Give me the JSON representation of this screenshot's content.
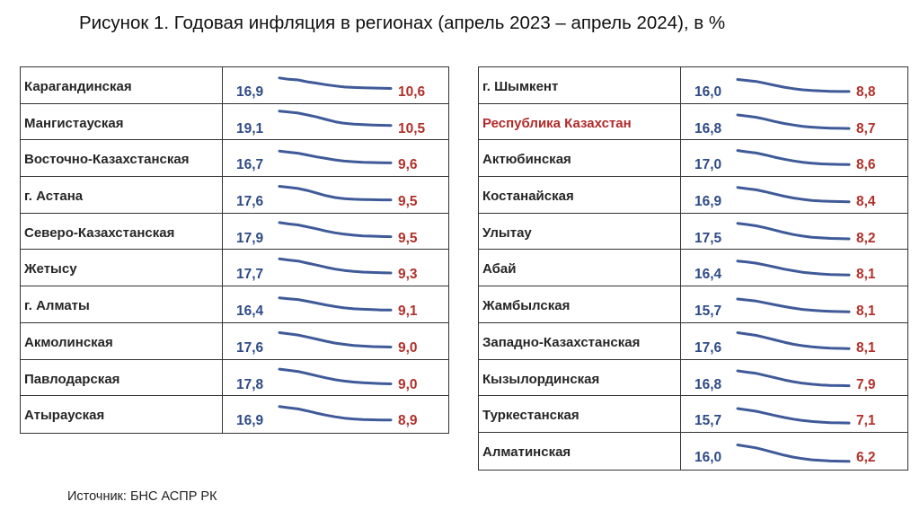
{
  "title": "Рисунок 1. Годовая инфляция в регионах (апрель 2023 – апрель 2024), в %",
  "source": "Источник: БНС АСПР РК",
  "colors": {
    "line": "#3f5a98",
    "start_value": "#2e4b86",
    "end_value": "#b0302a",
    "highlight": "#b22a2a"
  },
  "chart_data": {
    "type": "line",
    "subtype": "sparkline-table",
    "x": [
      "апрель 2023",
      "апрель 2024"
    ],
    "panels": [
      {
        "regions": [
          {
            "name": "Карагандинская",
            "start": "16,9",
            "end": "10,6",
            "series": [
              16.9,
              16.1,
              15.7,
              14.6,
              13.8,
              12.9,
              12.1,
              11.5,
              11.2,
              11.0,
              10.9,
              10.8,
              10.6
            ]
          },
          {
            "name": "Мангистауская",
            "start": "19,1",
            "end": "10,5",
            "series": [
              19.1,
              18.5,
              17.9,
              16.8,
              15.6,
              14.1,
              12.7,
              11.8,
              11.3,
              11.0,
              10.8,
              10.6,
              10.5
            ]
          },
          {
            "name": "Восточно-Казахстанская",
            "start": "16,7",
            "end": "9,6",
            "series": [
              16.7,
              16.0,
              15.4,
              14.3,
              13.2,
              12.3,
              11.4,
              10.7,
              10.3,
              10.0,
              9.8,
              9.7,
              9.6
            ]
          },
          {
            "name": "г. Астана",
            "start": "17,6",
            "end": "9,5",
            "series": [
              17.6,
              17.0,
              16.3,
              15.1,
              13.6,
              12.0,
              10.9,
              10.2,
              9.9,
              9.7,
              9.6,
              9.5,
              9.5
            ]
          },
          {
            "name": "Северо-Казахстанская",
            "start": "17,9",
            "end": "9,5",
            "series": [
              17.9,
              17.1,
              16.5,
              15.4,
              14.2,
              12.9,
              11.8,
              11.0,
              10.4,
              10.0,
              9.8,
              9.6,
              9.5
            ]
          },
          {
            "name": "Жетысу",
            "start": "17,7",
            "end": "9,3",
            "series": [
              17.7,
              17.0,
              16.4,
              15.2,
              14.0,
              12.7,
              11.6,
              10.8,
              10.2,
              9.8,
              9.6,
              9.4,
              9.3
            ]
          },
          {
            "name": "г. Алматы",
            "start": "16,4",
            "end": "9,1",
            "series": [
              16.4,
              15.9,
              15.4,
              14.4,
              13.3,
              12.2,
              11.2,
              10.4,
              9.9,
              9.6,
              9.4,
              9.2,
              9.1
            ]
          },
          {
            "name": "Акмолинская",
            "start": "17,6",
            "end": "9,0",
            "series": [
              17.6,
              16.9,
              16.2,
              15.0,
              13.8,
              12.5,
              11.4,
              10.6,
              10.0,
              9.6,
              9.3,
              9.1,
              9.0
            ]
          },
          {
            "name": "Павлодарская",
            "start": "17,8",
            "end": "9,0",
            "series": [
              17.8,
              17.1,
              16.4,
              15.2,
              13.9,
              12.6,
              11.5,
              10.7,
              10.1,
              9.7,
              9.4,
              9.2,
              9.0
            ]
          },
          {
            "name": "Атырауская",
            "start": "16,9",
            "end": "8,9",
            "series": [
              16.9,
              16.2,
              15.5,
              14.3,
              13.0,
              11.8,
              10.8,
              10.0,
              9.5,
              9.2,
              9.0,
              8.9,
              8.9
            ]
          }
        ]
      },
      {
        "regions": [
          {
            "name": "г. Шымкент",
            "start": "16,0",
            "end": "8,8",
            "series": [
              16.0,
              15.4,
              14.8,
              13.7,
              12.5,
              11.4,
              10.5,
              9.8,
              9.4,
              9.1,
              8.9,
              8.8,
              8.8
            ]
          },
          {
            "name": "Республика Казахстан",
            "start": "16,8",
            "end": "8,7",
            "highlight": true,
            "series": [
              16.8,
              16.1,
              15.4,
              14.2,
              12.9,
              11.7,
              10.8,
              10.0,
              9.5,
              9.1,
              8.9,
              8.8,
              8.7
            ]
          },
          {
            "name": "Актюбинская",
            "start": "17,0",
            "end": "8,6",
            "series": [
              17.0,
              16.2,
              15.5,
              14.3,
              13.0,
              11.8,
              10.8,
              10.0,
              9.4,
              9.0,
              8.8,
              8.7,
              8.6
            ]
          },
          {
            "name": "Костанайская",
            "start": "16,9",
            "end": "8,4",
            "series": [
              16.9,
              16.2,
              15.5,
              14.3,
              13.0,
              11.7,
              10.6,
              9.8,
              9.2,
              8.8,
              8.6,
              8.5,
              8.4
            ]
          },
          {
            "name": "Улытау",
            "start": "17,5",
            "end": "8,2",
            "series": [
              17.5,
              16.8,
              16.0,
              14.8,
              13.4,
              12.0,
              10.8,
              9.9,
              9.2,
              8.8,
              8.5,
              8.3,
              8.2
            ]
          },
          {
            "name": "Абай",
            "start": "16,4",
            "end": "8,1",
            "series": [
              16.4,
              15.8,
              15.1,
              14.0,
              12.8,
              11.6,
              10.6,
              9.7,
              9.1,
              8.7,
              8.4,
              8.2,
              8.1
            ]
          },
          {
            "name": "Жамбылская",
            "start": "15,7",
            "end": "8,1",
            "series": [
              15.7,
              15.1,
              14.5,
              13.4,
              12.3,
              11.2,
              10.3,
              9.5,
              9.0,
              8.6,
              8.4,
              8.2,
              8.1
            ]
          },
          {
            "name": "Западно-Казахстанская",
            "start": "17,6",
            "end": "8,1",
            "series": [
              17.6,
              16.8,
              16.0,
              14.7,
              13.3,
              11.9,
              10.7,
              9.8,
              9.1,
              8.7,
              8.4,
              8.2,
              8.1
            ]
          },
          {
            "name": "Кызылординская",
            "start": "16,8",
            "end": "7,9",
            "series": [
              16.8,
              16.0,
              15.3,
              14.0,
              12.7,
              11.4,
              10.3,
              9.4,
              8.8,
              8.4,
              8.1,
              8.0,
              7.9
            ]
          },
          {
            "name": "Туркестанская",
            "start": "15,7",
            "end": "7,1",
            "series": [
              15.7,
              14.9,
              14.1,
              12.9,
              11.6,
              10.4,
              9.4,
              8.6,
              8.0,
              7.6,
              7.3,
              7.2,
              7.1
            ]
          },
          {
            "name": "Алматинская",
            "start": "16,0",
            "end": "6,2",
            "series": [
              16.0,
              15.1,
              14.2,
              12.8,
              11.3,
              9.9,
              8.7,
              7.8,
              7.1,
              6.7,
              6.4,
              6.3,
              6.2
            ]
          }
        ]
      }
    ]
  }
}
